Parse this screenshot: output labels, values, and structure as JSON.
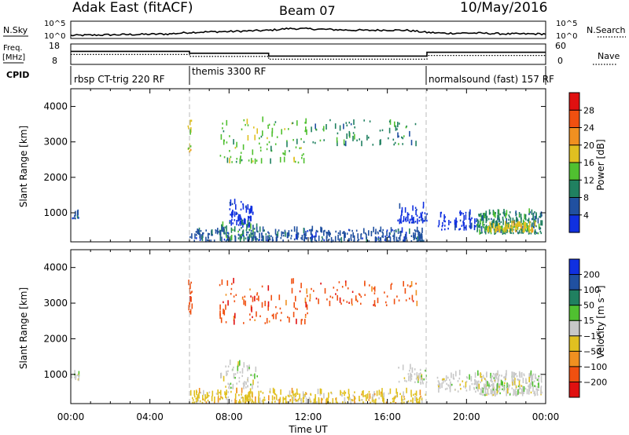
{
  "header": {
    "station": "Adak East (fitACF)",
    "beam": "Beam 07",
    "date": "10/May/2016"
  },
  "side_labels": {
    "n_sky": "N.Sky",
    "n_search": "N.Search",
    "freq_line1": "Freq.",
    "freq_line2": "[MHz]",
    "nave": "Nave",
    "cpid": "CPID"
  },
  "axes": {
    "slant_range_label": "Slant Range [km]",
    "time_label": "Time UT",
    "time_ticks": [
      "00:00",
      "04:00",
      "08:00",
      "12:00",
      "16:00",
      "20:00",
      "00:00"
    ],
    "range_ticks": [
      "1000",
      "2000",
      "3000",
      "4000"
    ],
    "noise_left_ticks": [
      "10^5",
      "10^0"
    ],
    "noise_right_ticks": [
      "10^5",
      "10^0"
    ],
    "freq_ticks": [
      "18",
      "8"
    ],
    "nave_ticks": [
      "60",
      "0"
    ]
  },
  "cpid_segments": [
    {
      "label": "rbsp CT-trig 220 RF",
      "start_hour": 0,
      "end_hour": 6
    },
    {
      "label": "themis 3300 RF",
      "start_hour": 6,
      "end_hour": 18
    },
    {
      "label": "normalsound (fast) 157 RF",
      "start_hour": 18,
      "end_hour": 24
    }
  ],
  "colorbars": {
    "power": {
      "label": "Power [dB]",
      "ticks": [
        "4",
        "8",
        "12",
        "16",
        "20",
        "24",
        "28"
      ],
      "colors": [
        "#1030e0",
        "#2050a0",
        "#208060",
        "#50c030",
        "#e0c020",
        "#f09020",
        "#f05010",
        "#e01010"
      ]
    },
    "velocity": {
      "label": "Velocity [m s⁻¹]",
      "ticks": [
        "200",
        "100",
        "50",
        "15",
        "−15",
        "−50",
        "−100",
        "−200"
      ],
      "colors": [
        "#1030e0",
        "#2050a0",
        "#208060",
        "#50c030",
        "#c8c8c8",
        "#e0c020",
        "#f09020",
        "#f05010",
        "#e01010"
      ]
    }
  },
  "chart_data": {
    "type": "heatmap",
    "x_unit": "hours UT",
    "xlim": [
      0,
      24
    ],
    "ylim_km": [
      180,
      4500
    ],
    "noise": {
      "ylim_log10": [
        0,
        5
      ],
      "sky_log10_by_hour": [
        0.5,
        0.6,
        0.7,
        0.8,
        0.9,
        1.0,
        1.5,
        1.7,
        1.8,
        2.0,
        2.2,
        2.8,
        2.7,
        2.5,
        2.3,
        2.2,
        2.3,
        2.2,
        1.5,
        1.2,
        1.3,
        1.2,
        1.0,
        1.0,
        1.0
      ]
    },
    "frequency": {
      "ylim_mhz": [
        8,
        18
      ],
      "segments": [
        {
          "start_hour": 0,
          "end_hour": 6,
          "mhz": 14.5
        },
        {
          "start_hour": 6,
          "end_hour": 10,
          "mhz": 13.5
        },
        {
          "start_hour": 10,
          "end_hour": 18,
          "mhz": 12.0
        },
        {
          "start_hour": 18,
          "end_hour": 24,
          "mhz": 14.0
        }
      ]
    },
    "power_scatter_regions": [
      {
        "x_range": [
          0.0,
          0.4
        ],
        "range_km": [
          820,
          1000
        ],
        "level": 1,
        "density": 15
      },
      {
        "x_range": [
          5.9,
          6.1
        ],
        "range_km": [
          2700,
          3600
        ],
        "level": 4,
        "density": 15
      },
      {
        "x_range": [
          8.0,
          9.2
        ],
        "range_km": [
          600,
          1300
        ],
        "level": 0,
        "density": 70
      },
      {
        "x_range": [
          7.5,
          9.5
        ],
        "range_km": [
          200,
          700
        ],
        "level": 2,
        "density": 60
      },
      {
        "x_range": [
          7.5,
          12.0
        ],
        "range_km": [
          2400,
          3600
        ],
        "level": 3,
        "density": 100
      },
      {
        "x_range": [
          12.0,
          17.5
        ],
        "range_km": [
          2900,
          3600
        ],
        "level": 2,
        "density": 70
      },
      {
        "x_range": [
          6.0,
          18.0
        ],
        "range_km": [
          180,
          500
        ],
        "level": 1,
        "density": 320
      },
      {
        "x_range": [
          16.5,
          18.0
        ],
        "range_km": [
          700,
          1200
        ],
        "level": 0,
        "density": 50
      },
      {
        "x_range": [
          18.5,
          20.5
        ],
        "range_km": [
          500,
          1000
        ],
        "level": 0,
        "density": 60
      },
      {
        "x_range": [
          20.5,
          23.8
        ],
        "range_km": [
          400,
          1000
        ],
        "level": 2,
        "density": 240
      },
      {
        "x_range": [
          21.0,
          23.5
        ],
        "range_km": [
          450,
          650
        ],
        "level": 4,
        "density": 80
      }
    ],
    "velocity_scatter_regions": [
      {
        "x_range": [
          0.0,
          0.4
        ],
        "range_km": [
          820,
          1000
        ],
        "level": 4,
        "density": 15
      },
      {
        "x_range": [
          5.9,
          6.1
        ],
        "range_km": [
          2700,
          3600
        ],
        "level": 7,
        "density": 15
      },
      {
        "x_range": [
          7.5,
          9.5
        ],
        "range_km": [
          600,
          1300
        ],
        "level": 4,
        "density": 60
      },
      {
        "x_range": [
          7.5,
          12.0
        ],
        "range_km": [
          2400,
          3600
        ],
        "level": 7,
        "density": 90
      },
      {
        "x_range": [
          12.0,
          17.5
        ],
        "range_km": [
          2900,
          3600
        ],
        "level": 7,
        "density": 70
      },
      {
        "x_range": [
          6.0,
          18.0
        ],
        "range_km": [
          180,
          500
        ],
        "level": 5,
        "density": 320
      },
      {
        "x_range": [
          16.5,
          18.0
        ],
        "range_km": [
          700,
          1200
        ],
        "level": 4,
        "density": 40
      },
      {
        "x_range": [
          18.5,
          20.5
        ],
        "range_km": [
          500,
          1000
        ],
        "level": 4,
        "density": 60
      },
      {
        "x_range": [
          20.5,
          23.8
        ],
        "range_km": [
          400,
          1000
        ],
        "level": 4,
        "density": 240
      }
    ]
  }
}
